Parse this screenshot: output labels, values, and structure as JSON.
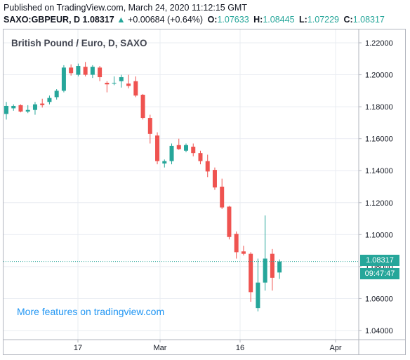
{
  "header": {
    "published": "Published on TradingView.com, March 24, 2020 11:12:15 GMT",
    "symbol": "SAXO:GBPEUR, D",
    "last": "1.08317",
    "arrow": "▲",
    "change": "+0.00684 (+0.64%)",
    "o_label": "O:",
    "o": "1.07633",
    "h_label": "H:",
    "h": "1.08445",
    "l_label": "L:",
    "l": "1.07229",
    "c_label": "C:",
    "c": "1.08317"
  },
  "chart_title": "British Pound / Euro, D, SAXO",
  "promo": "More features on tradingview.com",
  "price_badge": {
    "price": "1.08317",
    "countdown": "09:47:47"
  },
  "colors": {
    "up": "#26a69a",
    "down": "#ef5350",
    "grid": "#e9ecf2",
    "axis": "#b2b5be",
    "link": "#2196f3"
  },
  "chart_data": {
    "type": "candlestick",
    "y_ticks": [
      "1.22000",
      "1.20000",
      "1.18000",
      "1.16000",
      "1.14000",
      "1.12000",
      "1.10000",
      "1.08000",
      "1.06000",
      "1.04000"
    ],
    "ylim": [
      1.04,
      1.22
    ],
    "x_ticks": [
      "17",
      "Mar",
      "16",
      "Apr"
    ],
    "candles": [
      {
        "o": 1.1755,
        "h": 1.183,
        "l": 1.172,
        "c": 1.1805
      },
      {
        "o": 1.179,
        "h": 1.1815,
        "l": 1.1775,
        "c": 1.1805
      },
      {
        "o": 1.181,
        "h": 1.1815,
        "l": 1.1765,
        "c": 1.177
      },
      {
        "o": 1.177,
        "h": 1.181,
        "l": 1.176,
        "c": 1.178
      },
      {
        "o": 1.178,
        "h": 1.183,
        "l": 1.175,
        "c": 1.1815
      },
      {
        "o": 1.182,
        "h": 1.185,
        "l": 1.1795,
        "c": 1.181
      },
      {
        "o": 1.183,
        "h": 1.187,
        "l": 1.1815,
        "c": 1.1855
      },
      {
        "o": 1.186,
        "h": 1.191,
        "l": 1.1845,
        "c": 1.19
      },
      {
        "o": 1.19,
        "h": 1.206,
        "l": 1.189,
        "c": 1.2045
      },
      {
        "o": 1.2045,
        "h": 1.2065,
        "l": 1.1995,
        "c": 1.201
      },
      {
        "o": 1.2,
        "h": 1.207,
        "l": 1.199,
        "c": 1.2055
      },
      {
        "o": 1.205,
        "h": 1.208,
        "l": 1.199,
        "c": 1.2
      },
      {
        "o": 1.2,
        "h": 1.206,
        "l": 1.198,
        "c": 1.205
      },
      {
        "o": 1.2045,
        "h": 1.2055,
        "l": 1.196,
        "c": 1.1985
      },
      {
        "o": 1.195,
        "h": 1.196,
        "l": 1.189,
        "c": 1.194
      },
      {
        "o": 1.195,
        "h": 1.199,
        "l": 1.1935,
        "c": 1.195
      },
      {
        "o": 1.196,
        "h": 1.2,
        "l": 1.192,
        "c": 1.1985
      },
      {
        "o": 1.1945,
        "h": 1.2,
        "l": 1.1915,
        "c": 1.193
      },
      {
        "o": 1.196,
        "h": 1.199,
        "l": 1.186,
        "c": 1.187
      },
      {
        "o": 1.1875,
        "h": 1.188,
        "l": 1.172,
        "c": 1.173
      },
      {
        "o": 1.173,
        "h": 1.175,
        "l": 1.157,
        "c": 1.163
      },
      {
        "o": 1.162,
        "h": 1.164,
        "l": 1.144,
        "c": 1.146
      },
      {
        "o": 1.1445,
        "h": 1.147,
        "l": 1.142,
        "c": 1.146
      },
      {
        "o": 1.146,
        "h": 1.157,
        "l": 1.144,
        "c": 1.1555
      },
      {
        "o": 1.156,
        "h": 1.16,
        "l": 1.153,
        "c": 1.1535
      },
      {
        "o": 1.1525,
        "h": 1.157,
        "l": 1.1515,
        "c": 1.156
      },
      {
        "o": 1.155,
        "h": 1.157,
        "l": 1.149,
        "c": 1.151
      },
      {
        "o": 1.151,
        "h": 1.1525,
        "l": 1.144,
        "c": 1.146
      },
      {
        "o": 1.146,
        "h": 1.15,
        "l": 1.136,
        "c": 1.1395
      },
      {
        "o": 1.1405,
        "h": 1.142,
        "l": 1.128,
        "c": 1.1295
      },
      {
        "o": 1.13,
        "h": 1.135,
        "l": 1.116,
        "c": 1.117
      },
      {
        "o": 1.1175,
        "h": 1.118,
        "l": 1.097,
        "c": 1.0985
      },
      {
        "o": 1.1005,
        "h": 1.102,
        "l": 1.085,
        "c": 1.089
      },
      {
        "o": 1.0895,
        "h": 1.093,
        "l": 1.087,
        "c": 1.088
      },
      {
        "o": 1.088,
        "h": 1.089,
        "l": 1.058,
        "c": 1.064
      },
      {
        "o": 1.054,
        "h": 1.085,
        "l": 1.052,
        "c": 1.07
      },
      {
        "o": 1.07,
        "h": 1.112,
        "l": 1.065,
        "c": 1.085
      },
      {
        "o": 1.088,
        "h": 1.091,
        "l": 1.065,
        "c": 1.073
      },
      {
        "o": 1.0763,
        "h": 1.0845,
        "l": 1.0723,
        "c": 1.0832
      }
    ],
    "last_price": 1.08317
  }
}
